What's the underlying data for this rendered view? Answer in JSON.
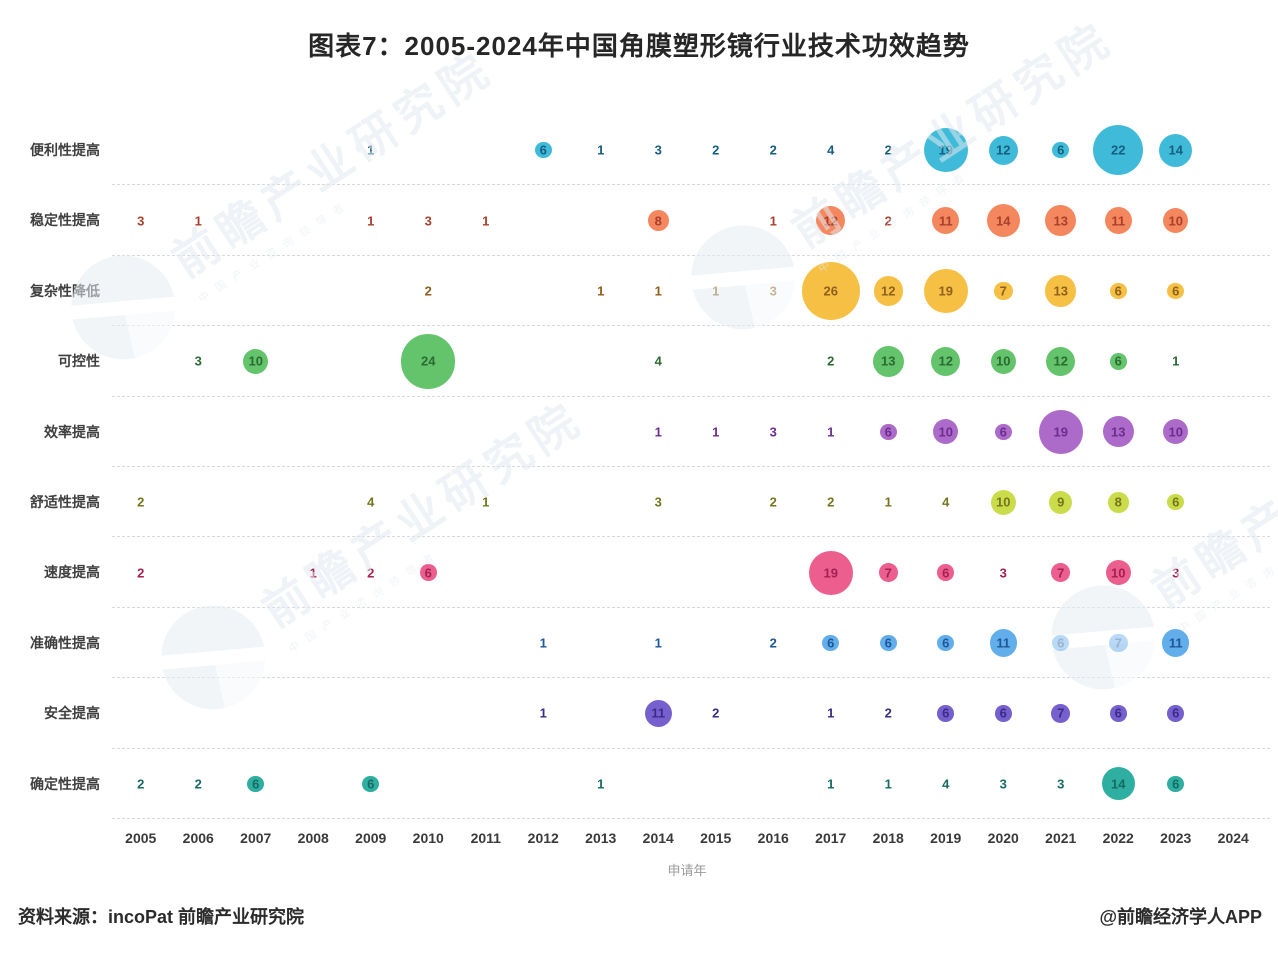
{
  "title": "图表7：2005-2024年中国角膜塑形镜行业技术功效趋势",
  "footer": {
    "source": "资料来源：incoPat 前瞻产业研究院",
    "credit": "@前瞻经济学人APP"
  },
  "watermark": {
    "logo": "qianzhan-pie-logo",
    "text": "前瞻产业研究院",
    "subtext": "中国产业咨询领导者"
  },
  "chart_data": {
    "type": "scatter",
    "subtype": "bubble-matrix",
    "title": "图表7：2005-2024年中国角膜塑形镜行业技术功效趋势",
    "xlabel": "申请年",
    "ylabel": "",
    "grid": "dashed-horizontal",
    "x": [
      "2005",
      "2006",
      "2007",
      "2008",
      "2009",
      "2010",
      "2011",
      "2012",
      "2013",
      "2014",
      "2015",
      "2016",
      "2017",
      "2018",
      "2019",
      "2020",
      "2021",
      "2022",
      "2023",
      "2024"
    ],
    "categories": [
      "便利性提高",
      "稳定性提高",
      "复杂性降低",
      "可控性",
      "效率提高",
      "舒适性提高",
      "速度提高",
      "准确性提高",
      "安全提高",
      "确定性提高"
    ],
    "series": [
      {
        "name": "便利性提高",
        "color": "#3FBBD9",
        "text_color": "#155E80",
        "values": {
          "2009": 1,
          "2012": 6,
          "2013": 1,
          "2014": 3,
          "2015": 2,
          "2016": 2,
          "2017": 4,
          "2018": 2,
          "2019": 19,
          "2020": 12,
          "2021": 6,
          "2022": 22,
          "2023": 14
        }
      },
      {
        "name": "稳定性提高",
        "color": "#F5875F",
        "text_color": "#A6402B",
        "values": {
          "2005": 3,
          "2006": 1,
          "2009": 1,
          "2010": 3,
          "2011": 1,
          "2014": 8,
          "2016": 1,
          "2017": 12,
          "2018": 2,
          "2019": 11,
          "2020": 14,
          "2021": 13,
          "2022": 11,
          "2023": 10
        }
      },
      {
        "name": "复杂性降低",
        "color": "#F6C044",
        "text_color": "#8F5F1D",
        "values": {
          "2010": 2,
          "2013": 1,
          "2014": 1,
          "2015": 1,
          "2016": 3,
          "2017": 26,
          "2018": 12,
          "2019": 19,
          "2020": 7,
          "2021": 13,
          "2022": 6,
          "2023": 6
        }
      },
      {
        "name": "可控性",
        "color": "#63C46C",
        "text_color": "#2C6A33",
        "values": {
          "2006": 3,
          "2007": 10,
          "2010": 24,
          "2014": 4,
          "2017": 2,
          "2018": 13,
          "2019": 12,
          "2020": 10,
          "2021": 12,
          "2022": 6,
          "2023": 1
        }
      },
      {
        "name": "效率提高",
        "color": "#AC6BC9",
        "text_color": "#6C2D8F",
        "values": {
          "2014": 1,
          "2015": 1,
          "2016": 3,
          "2017": 1,
          "2018": 6,
          "2019": 10,
          "2020": 6,
          "2021": 19,
          "2022": 13,
          "2023": 10
        }
      },
      {
        "name": "舒适性提高",
        "color": "#CBDC4B",
        "text_color": "#75751E",
        "values": {
          "2005": 2,
          "2009": 4,
          "2011": 1,
          "2014": 3,
          "2016": 2,
          "2017": 2,
          "2018": 1,
          "2019": 4,
          "2020": 10,
          "2021": 9,
          "2022": 8,
          "2023": 6
        }
      },
      {
        "name": "速度提高",
        "color": "#EC5E8E",
        "text_color": "#A32052",
        "values": {
          "2005": 2,
          "2008": 1,
          "2009": 2,
          "2010": 6,
          "2017": 19,
          "2018": 7,
          "2019": 6,
          "2020": 3,
          "2021": 7,
          "2022": 10,
          "2023": 3
        }
      },
      {
        "name": "准确性提高",
        "color": "#62AEEB",
        "text_color": "#1E5699",
        "values": {
          "2012": 1,
          "2014": 1,
          "2016": 2,
          "2017": 6,
          "2018": 6,
          "2019": 6,
          "2020": 11,
          "2021": 6,
          "2022": 7,
          "2023": 11
        }
      },
      {
        "name": "安全提高",
        "color": "#7660CE",
        "text_color": "#3A2B86",
        "values": {
          "2012": 1,
          "2014": 11,
          "2015": 2,
          "2017": 1,
          "2018": 2,
          "2019": 6,
          "2020": 6,
          "2021": 7,
          "2022": 6,
          "2023": 6
        }
      },
      {
        "name": "确定性提高",
        "color": "#2FAEA2",
        "text_color": "#176B62",
        "values": {
          "2005": 2,
          "2006": 2,
          "2007": 6,
          "2009": 6,
          "2013": 1,
          "2017": 1,
          "2018": 1,
          "2019": 4,
          "2020": 3,
          "2021": 3,
          "2022": 14,
          "2023": 6
        }
      }
    ]
  }
}
